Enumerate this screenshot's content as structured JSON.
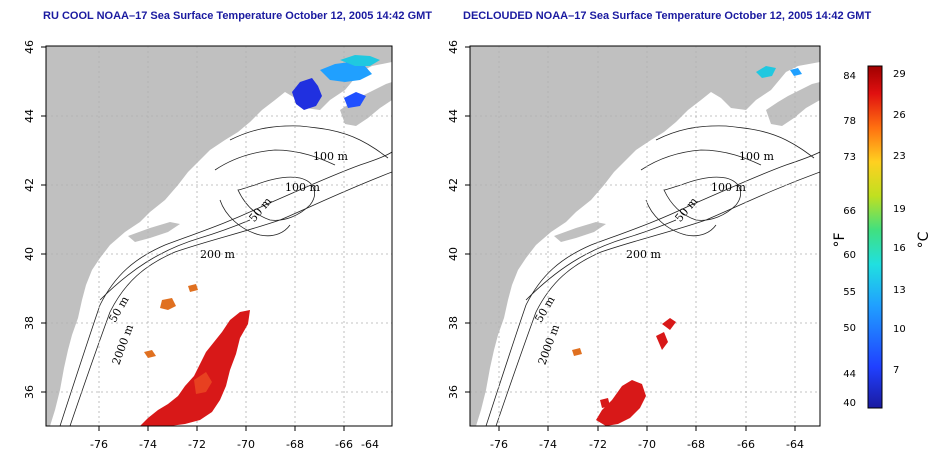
{
  "panels": [
    {
      "title": "RU COOL NOAA–17 Sea Surface Temperature October 12, 2005 14:42 GMT",
      "x_ticks": [
        "-76",
        "-74",
        "-72",
        "-70",
        "-68",
        "-66",
        "-64"
      ],
      "y_ticks": [
        "46",
        "44",
        "42",
        "40",
        "38",
        "36"
      ],
      "contour_labels": [
        "100 m",
        "100 m",
        "50 m",
        "200 m",
        "50 m",
        "2000 m"
      ]
    },
    {
      "title": "DECLOUDED NOAA–17 Sea Surface Temperature October 12, 2005 14:42 GMT",
      "x_ticks": [
        "-76",
        "-74",
        "-72",
        "-70",
        "-68",
        "-66",
        "-64"
      ],
      "y_ticks": [
        "46",
        "44",
        "42",
        "40",
        "38",
        "36"
      ],
      "contour_labels": [
        "100 m",
        "100 m",
        "50 m",
        "200 m",
        "50 m",
        "2000 m"
      ]
    }
  ],
  "colorbar": {
    "fahrenheit_ticks": [
      "84",
      "78",
      "73",
      "66",
      "60",
      "55",
      "50",
      "44",
      "40"
    ],
    "celsius_ticks": [
      "29",
      "26",
      "23",
      "19",
      "16",
      "13",
      "10",
      "7"
    ],
    "fahrenheit_unit": "°F",
    "celsius_unit": "°C"
  },
  "colors": {
    "land": "#c0c0c0",
    "title": "#1a1aa0",
    "grid": "#b0b0b0",
    "warm": "#d81818",
    "orange": "#e07020",
    "cold_blue": "#2030e0",
    "cyan": "#20c8e0"
  }
}
